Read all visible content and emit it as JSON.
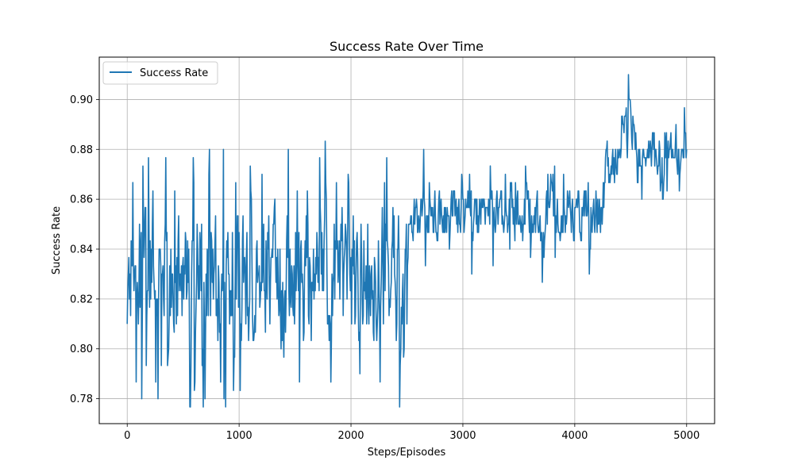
{
  "chart_data": {
    "type": "line",
    "title": "Success Rate Over Time",
    "xlabel": "Steps/Episodes",
    "ylabel": "Success Rate",
    "xlim": [
      -250,
      5250
    ],
    "ylim": [
      0.77,
      0.917
    ],
    "xticks": [
      0,
      1000,
      2000,
      3000,
      4000,
      5000
    ],
    "xtick_labels": [
      "0",
      "1000",
      "2000",
      "3000",
      "4000",
      "5000"
    ],
    "yticks": [
      0.78,
      0.8,
      0.82,
      0.84,
      0.86,
      0.88,
      0.9
    ],
    "ytick_labels": [
      "0.78",
      "0.80",
      "0.82",
      "0.84",
      "0.86",
      "0.88",
      "0.90"
    ],
    "grid": true,
    "legend_position": "top-left",
    "series": [
      {
        "name": "Success Rate",
        "color": "#1f77b4",
        "x_start": 0,
        "x_step": 5,
        "segments": [
          {
            "from": 0,
            "to": 2500,
            "center": 0.8285,
            "noise": 0.022,
            "min": 0.7767,
            "max": 0.8833
          },
          {
            "from": 2500,
            "to": 4250,
            "center": 0.8535,
            "noise": 0.0085,
            "min": 0.8267,
            "max": 0.88
          },
          {
            "from": 4250,
            "to": 4400,
            "center": 0.873,
            "noise": 0.007,
            "min": 0.85,
            "max": 0.89
          },
          {
            "from": 4400,
            "to": 4550,
            "center": 0.888,
            "noise": 0.008,
            "min": 0.87,
            "max": 0.91
          },
          {
            "from": 4550,
            "to": 5000,
            "center": 0.878,
            "noise": 0.0065,
            "min": 0.86,
            "max": 0.8967
          }
        ],
        "anchor_points": [
          {
            "x": 0,
            "y": 0.81
          },
          {
            "x": 50,
            "y": 0.8667
          },
          {
            "x": 80,
            "y": 0.7867
          },
          {
            "x": 130,
            "y": 0.78
          },
          {
            "x": 140,
            "y": 0.8733
          },
          {
            "x": 345,
            "y": 0.8767
          },
          {
            "x": 360,
            "y": 0.7933
          },
          {
            "x": 560,
            "y": 0.7767
          },
          {
            "x": 590,
            "y": 0.8767
          },
          {
            "x": 695,
            "y": 0.78
          },
          {
            "x": 860,
            "y": 0.88
          },
          {
            "x": 880,
            "y": 0.7767
          },
          {
            "x": 1010,
            "y": 0.7833
          },
          {
            "x": 1100,
            "y": 0.8733
          },
          {
            "x": 1540,
            "y": 0.7867
          },
          {
            "x": 1770,
            "y": 0.8833
          },
          {
            "x": 2080,
            "y": 0.79
          },
          {
            "x": 2260,
            "y": 0.7867
          },
          {
            "x": 2470,
            "y": 0.7967
          },
          {
            "x": 2500,
            "y": 0.81
          },
          {
            "x": 2650,
            "y": 0.88
          },
          {
            "x": 3080,
            "y": 0.83
          },
          {
            "x": 3560,
            "y": 0.8733
          },
          {
            "x": 3710,
            "y": 0.8267
          },
          {
            "x": 3820,
            "y": 0.8733
          },
          {
            "x": 4130,
            "y": 0.83
          },
          {
            "x": 4480,
            "y": 0.91
          },
          {
            "x": 4600,
            "y": 0.86
          },
          {
            "x": 4790,
            "y": 0.86
          },
          {
            "x": 4980,
            "y": 0.8967
          },
          {
            "x": 5000,
            "y": 0.88
          }
        ]
      }
    ]
  }
}
